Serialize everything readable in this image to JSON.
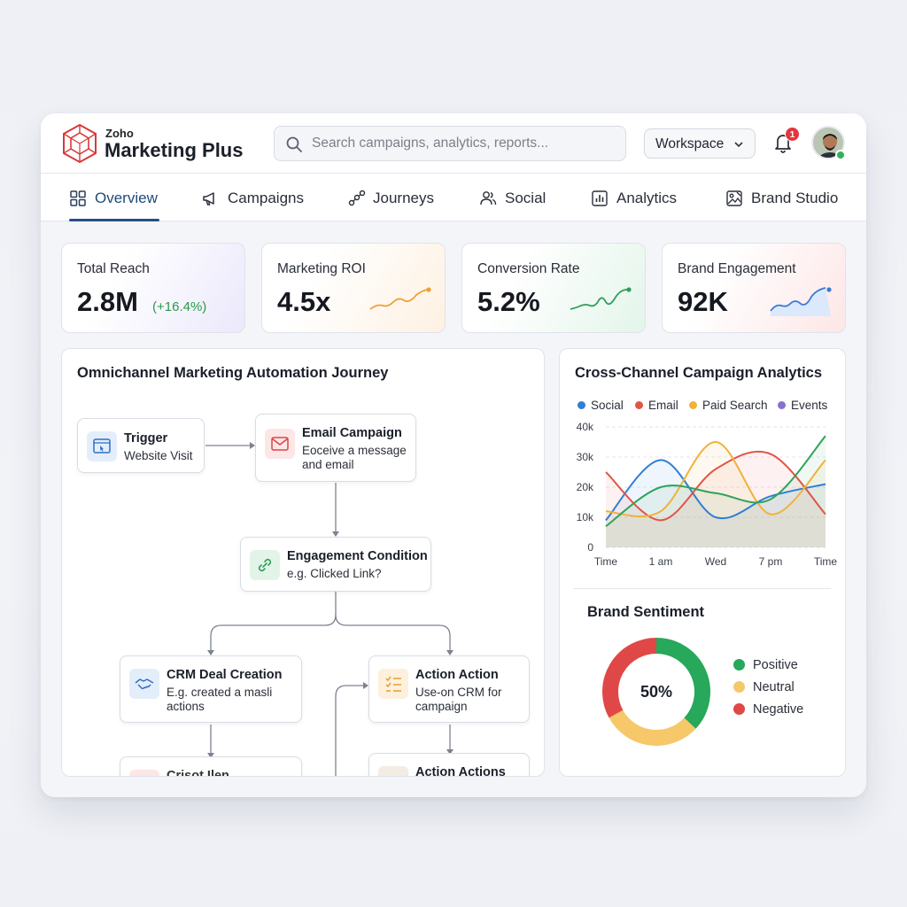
{
  "app": {
    "brand_small": "Zoho",
    "brand_name": "Marketing Plus"
  },
  "header": {
    "search_placeholder": "Search campaigns, analytics, reports...",
    "workspace_label": "Workspace",
    "notification_count": "1"
  },
  "tabs": [
    {
      "label": "Overview",
      "icon": "grid-icon",
      "active": true
    },
    {
      "label": "Campaigns",
      "icon": "megaphone-icon"
    },
    {
      "label": "Journeys",
      "icon": "journey-icon"
    },
    {
      "label": "Social",
      "icon": "people-icon"
    },
    {
      "label": "Analytics",
      "icon": "bar-chart-icon"
    },
    {
      "label": "Brand Studio",
      "icon": "image-icon"
    }
  ],
  "kpis": [
    {
      "label": "Total Reach",
      "value": "2.8M",
      "delta": "(+16.4%)"
    },
    {
      "label": "Marketing ROI",
      "value": "4.5x",
      "spark_color": "#f0a030"
    },
    {
      "label": "Conversion Rate",
      "value": "5.2%",
      "spark_color": "#2f9e5a"
    },
    {
      "label": "Brand Engagement",
      "value": "92K",
      "spark_color": "#3a7bd5"
    }
  ],
  "journey": {
    "title": "Omnichannel Marketing Automation Journey",
    "nodes": [
      {
        "title": "Trigger",
        "desc": "Website Visit",
        "icon": "browser-icon"
      },
      {
        "title": "Email Campaign",
        "desc": "Eoceive a message and email",
        "icon": "envelope-icon"
      },
      {
        "title": "Engagement Condition",
        "desc": "e.g. Clicked Link?",
        "icon": "link-icon"
      },
      {
        "title": "CRM Deal Creation",
        "desc": "E.g. created a masli actions",
        "icon": "handshake-icon"
      },
      {
        "title": "Action Action",
        "desc": "Use-on CRM for campaign",
        "icon": "checklist-icon"
      },
      {
        "title": "Crisot Ilen",
        "desc": "",
        "icon": "tag-icon"
      },
      {
        "title": "Action Actions",
        "desc": "",
        "icon": "circle-icon"
      }
    ]
  },
  "campaign_chart": {
    "title": "Cross-Channel Campaign Analytics",
    "legend": [
      {
        "name": "Social",
        "color": "#2f7fd6"
      },
      {
        "name": "Email",
        "color": "#e05548"
      },
      {
        "name": "Paid Search",
        "color": "#f0b23a"
      },
      {
        "name": "Events",
        "color": "#8a6fd1"
      }
    ]
  },
  "chart_data": {
    "type": "line",
    "x": [
      "Time",
      "1 am",
      "Wed",
      "7 pm",
      "Time"
    ],
    "yticks": [
      "40k",
      "30k",
      "20k",
      "10k",
      "0"
    ],
    "ylim": [
      0,
      40000
    ],
    "series": [
      {
        "name": "Social",
        "color": "#2f7fd6",
        "values": [
          9000,
          29000,
          10000,
          17000,
          21000
        ]
      },
      {
        "name": "Email",
        "color": "#e05548",
        "values": [
          25000,
          9000,
          26000,
          31000,
          11000
        ]
      },
      {
        "name": "Paid Search",
        "color": "#f0b23a",
        "values": [
          12000,
          12000,
          35000,
          11000,
          29000
        ]
      },
      {
        "name": "Events",
        "color": "#2fa35a",
        "values": [
          7000,
          20000,
          18000,
          16000,
          37000
        ]
      }
    ]
  },
  "sentiment": {
    "title": "Brand Sentiment",
    "center_label": "50%",
    "segments": [
      {
        "name": "Positive",
        "color": "#27a85a",
        "value": 0.37
      },
      {
        "name": "Neutral",
        "color": "#f6c86a",
        "value": 0.3
      },
      {
        "name": "Negative",
        "color": "#e04848",
        "value": 0.33
      }
    ]
  }
}
